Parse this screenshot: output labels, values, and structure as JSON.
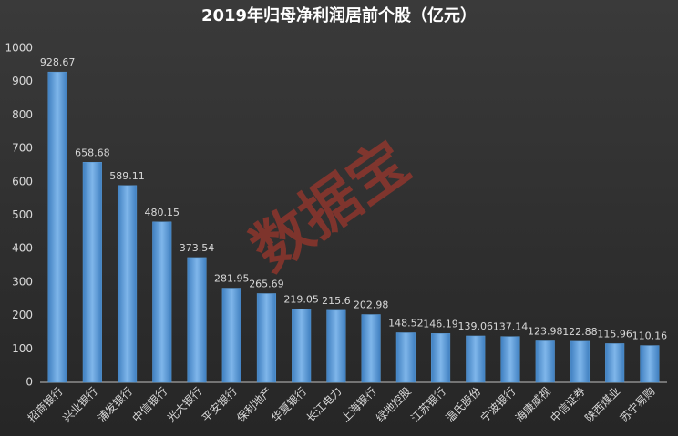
{
  "chart_data": {
    "type": "bar",
    "title": "2019年归母净利润居前个股（亿元）",
    "categories": [
      "招商银行",
      "兴业银行",
      "浦发银行",
      "中信银行",
      "光大银行",
      "平安银行",
      "保利地产",
      "华夏银行",
      "长江电力",
      "上海银行",
      "绿地控股",
      "江苏银行",
      "温氏股份",
      "宁波银行",
      "海康威视",
      "中信证券",
      "陕西煤业",
      "苏宁易购"
    ],
    "values": [
      928.67,
      658.68,
      589.11,
      480.15,
      373.54,
      281.95,
      265.69,
      219.05,
      215.6,
      202.98,
      148.52,
      146.19,
      139.06,
      137.14,
      123.98,
      122.88,
      115.96,
      110.16
    ],
    "color": "#5b9bd5",
    "ylim": [
      0,
      1000
    ],
    "yticks": [
      0,
      100,
      200,
      300,
      400,
      500,
      600,
      700,
      800,
      900,
      1000
    ],
    "grid": false,
    "watermark": "数据宝"
  }
}
